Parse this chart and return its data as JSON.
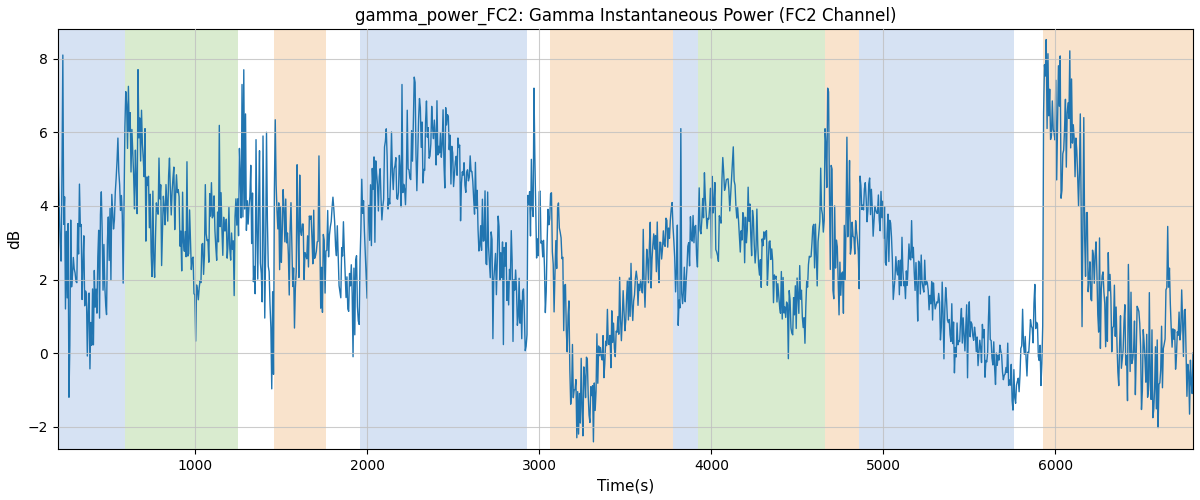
{
  "title": "gamma_power_FC2: Gamma Instantaneous Power (FC2 Channel)",
  "xlabel": "Time(s)",
  "ylabel": "dB",
  "xlim": [
    200,
    6800
  ],
  "ylim": [
    -2.6,
    8.8
  ],
  "line_color": "#2175b0",
  "line_width": 1.0,
  "background_color": "#ffffff",
  "grid_color": "#c0c0c0",
  "colored_bands": [
    {
      "xmin": 200,
      "xmax": 590,
      "color": "#aec6e8",
      "alpha": 0.5
    },
    {
      "xmin": 590,
      "xmax": 1250,
      "color": "#b5d9a0",
      "alpha": 0.5
    },
    {
      "xmin": 1250,
      "xmax": 1460,
      "color": "#ffffff",
      "alpha": 0.0
    },
    {
      "xmin": 1460,
      "xmax": 1760,
      "color": "#f5c99a",
      "alpha": 0.5
    },
    {
      "xmin": 1760,
      "xmax": 1960,
      "color": "#ffffff",
      "alpha": 0.0
    },
    {
      "xmin": 1960,
      "xmax": 2930,
      "color": "#aec6e8",
      "alpha": 0.5
    },
    {
      "xmin": 2930,
      "xmax": 3060,
      "color": "#ffffff",
      "alpha": 0.0
    },
    {
      "xmin": 3060,
      "xmax": 3780,
      "color": "#f5c99a",
      "alpha": 0.5
    },
    {
      "xmin": 3780,
      "xmax": 3920,
      "color": "#aec6e8",
      "alpha": 0.5
    },
    {
      "xmin": 3920,
      "xmax": 4660,
      "color": "#b5d9a0",
      "alpha": 0.5
    },
    {
      "xmin": 4660,
      "xmax": 4860,
      "color": "#f5c99a",
      "alpha": 0.5
    },
    {
      "xmin": 4860,
      "xmax": 5760,
      "color": "#aec6e8",
      "alpha": 0.5
    },
    {
      "xmin": 5760,
      "xmax": 5930,
      "color": "#ffffff",
      "alpha": 0.0
    },
    {
      "xmin": 5930,
      "xmax": 6800,
      "color": "#f5c99a",
      "alpha": 0.5
    }
  ],
  "xticks": [
    1000,
    2000,
    3000,
    4000,
    5000,
    6000
  ],
  "yticks": [
    -2,
    0,
    2,
    4,
    6,
    8
  ],
  "n_points": 1300,
  "t_start": 200,
  "t_end": 6800
}
